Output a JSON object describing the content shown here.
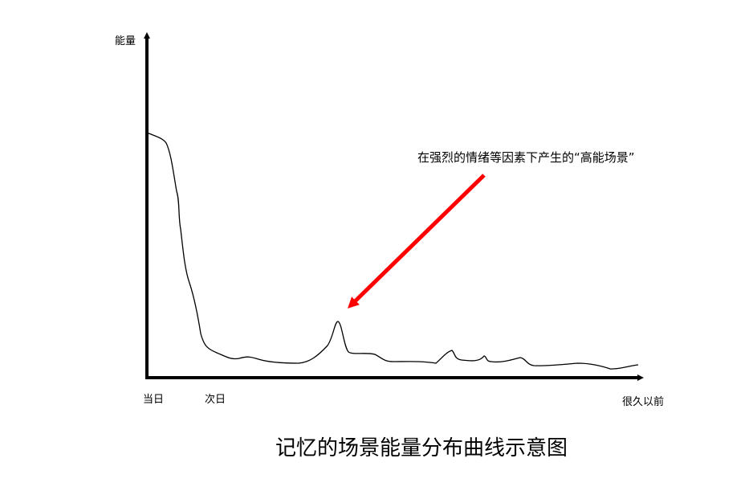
{
  "y_axis_label": "能量",
  "x_labels": [
    "当日",
    "次日",
    "很久以前"
  ],
  "annotation": "在强烈的情绪等因素下产生的“高能场景”",
  "title": "记忆的场景能量分布曲线示意图"
}
